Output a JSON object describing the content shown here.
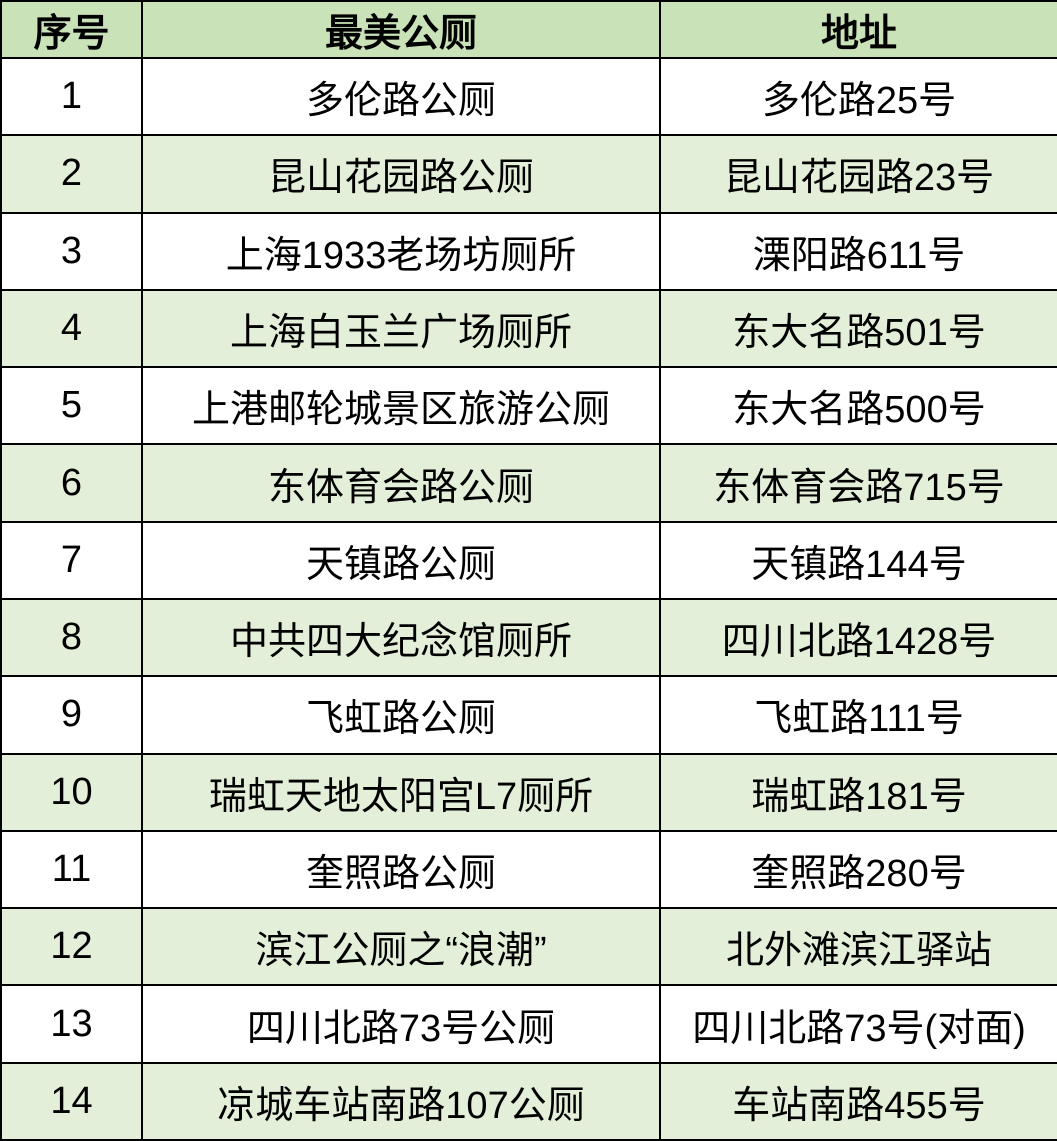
{
  "table": {
    "header": [
      "序号",
      "最美公厕",
      "地址"
    ],
    "rows": [
      [
        1,
        "多伦路公厕",
        "多伦路25号"
      ],
      [
        2,
        "昆山花园路公厕",
        "昆山花园路23号"
      ],
      [
        3,
        "上海1933老场坊厕所",
        "溧阳路611号"
      ],
      [
        4,
        "上海白玉兰广场厕所",
        "东大名路501号"
      ],
      [
        5,
        "上港邮轮城景区旅游公厕",
        "东大名路500号"
      ],
      [
        6,
        "东体育会路公厕",
        "东体育会路715号"
      ],
      [
        7,
        "天镇路公厕",
        "天镇路144号"
      ],
      [
        8,
        "中共四大纪念馆厕所",
        "四川北路1428号"
      ],
      [
        9,
        "飞虹路公厕",
        "飞虹路111号"
      ],
      [
        10,
        "瑞虹天地太阳宫L7厕所",
        "瑞虹路181号"
      ],
      [
        11,
        "奎照路公厕",
        "奎照路280号"
      ],
      [
        12,
        "滨江公厕之“浪潮”",
        "北外滩滨江驿站"
      ],
      [
        13,
        "四川北路73号公厕",
        "四川北路73号(对面)"
      ],
      [
        14,
        "凉城车站南路107公厕",
        "车站南路455号"
      ]
    ]
  }
}
